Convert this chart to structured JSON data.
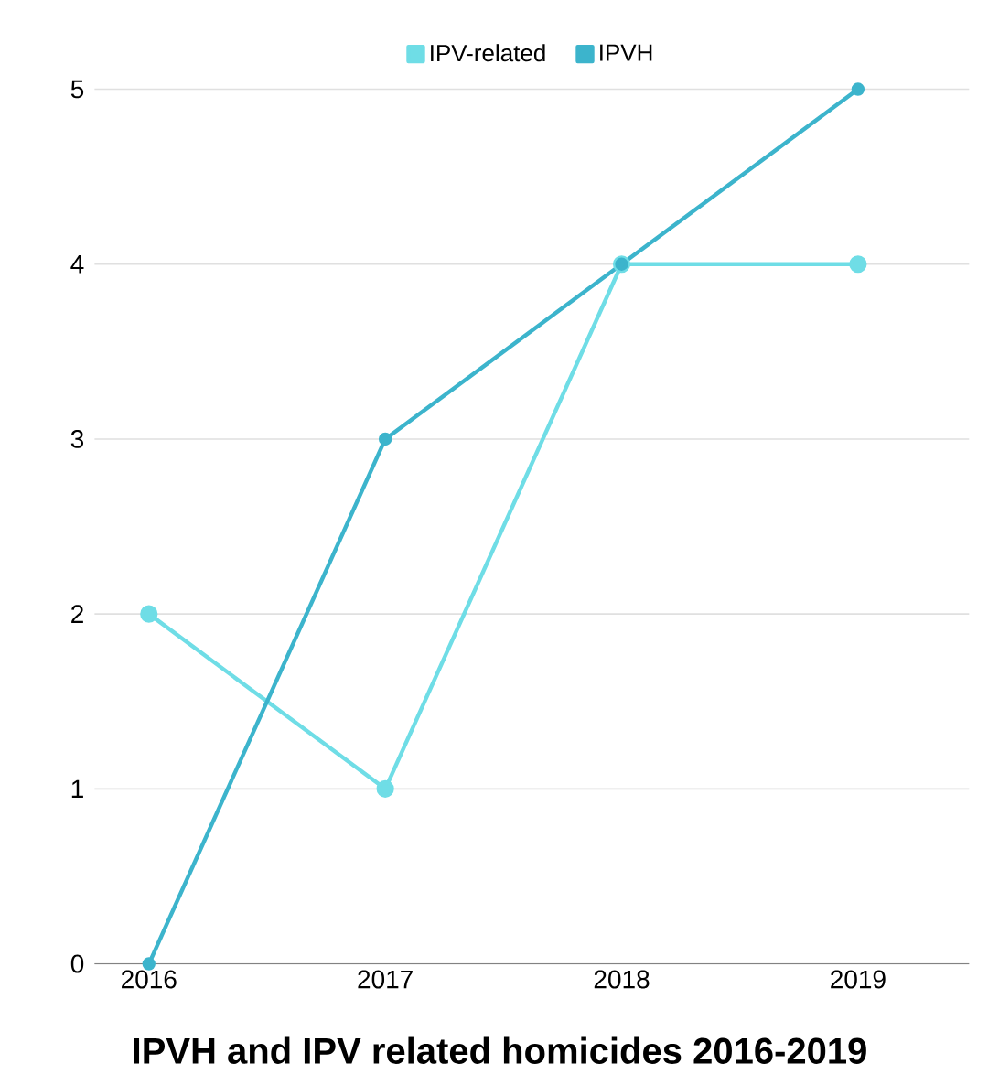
{
  "chart_data": {
    "type": "line",
    "title": "IPVH and IPV related homicides 2016-2019",
    "categories": [
      "2016",
      "2017",
      "2018",
      "2019"
    ],
    "series": [
      {
        "name": "IPV-related",
        "color": "#6fdde6",
        "values": [
          2,
          1,
          4,
          4
        ]
      },
      {
        "name": "IPVH",
        "color": "#3cb4cc",
        "values": [
          0,
          3,
          4,
          5
        ]
      }
    ],
    "ylim": [
      0,
      5
    ],
    "yticks": [
      0,
      1,
      2,
      3,
      4,
      5
    ],
    "grid": "y",
    "legend": "top",
    "marker": "circle",
    "line_style": "solid"
  }
}
